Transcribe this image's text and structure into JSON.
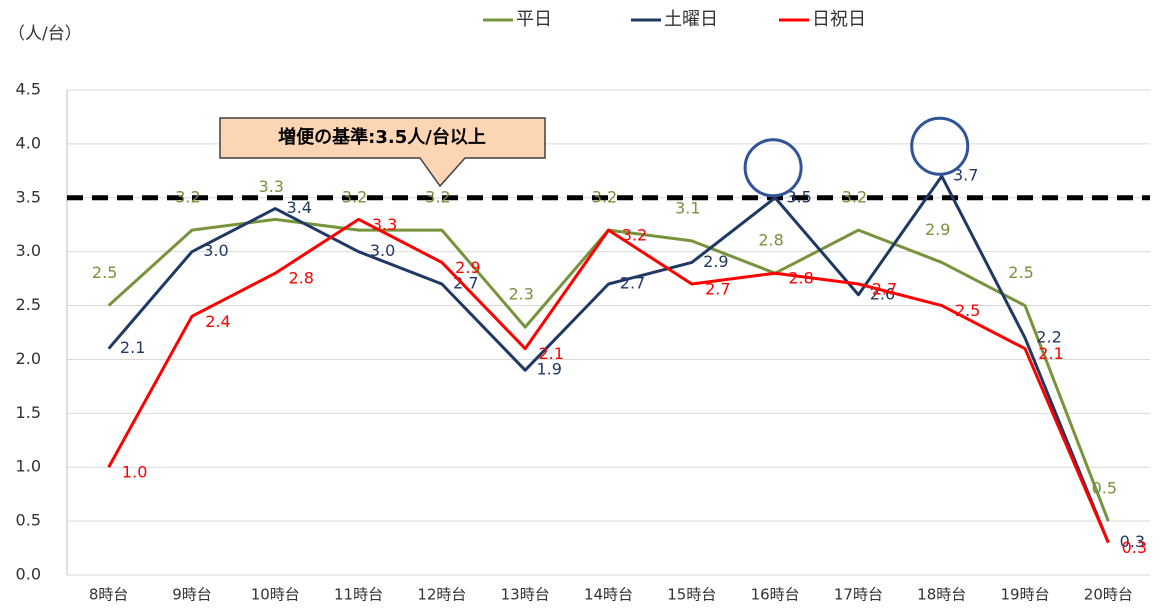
{
  "chart_data": {
    "type": "line",
    "y_axis_label": "（人/台）",
    "categories": [
      "8時台",
      "9時台",
      "10時台",
      "11時台",
      "12時台",
      "13時台",
      "14時台",
      "15時台",
      "16時台",
      "17時台",
      "18時台",
      "19時台",
      "20時台"
    ],
    "series": [
      {
        "name": "平日",
        "color": "#77933c",
        "values": [
          2.5,
          3.2,
          3.3,
          3.2,
          3.2,
          2.3,
          3.2,
          3.1,
          2.8,
          3.2,
          2.9,
          2.5,
          0.5
        ],
        "value_labels": [
          "2.5",
          "3.2",
          "3.3",
          "3.2",
          "3.2",
          "2.3",
          "3.2",
          "3.1",
          "2.8",
          "3.2",
          "2.9",
          "2.5",
          "0.5"
        ]
      },
      {
        "name": "土曜日",
        "color": "#1f3864",
        "values": [
          2.1,
          3.0,
          3.4,
          3.0,
          2.7,
          1.9,
          2.7,
          2.9,
          3.5,
          2.6,
          3.7,
          2.2,
          0.3
        ],
        "value_labels": [
          "2.1",
          "3.0",
          "3.4",
          "3.0",
          "2.7",
          "1.9",
          "2.7",
          "2.9",
          "3.5",
          "2.6",
          "3.7",
          "2.2",
          "0.3"
        ]
      },
      {
        "name": "日祝日",
        "color": "#ff0000",
        "values": [
          1.0,
          2.4,
          2.8,
          3.3,
          2.9,
          2.1,
          3.2,
          2.7,
          2.8,
          2.7,
          2.5,
          2.1,
          0.3
        ],
        "value_labels": [
          "1.0",
          "2.4",
          "2.8",
          "3.3",
          "2.9",
          "2.1",
          "3.2",
          "2.7",
          "2.8",
          "2.7",
          "2.5",
          "2.1",
          "0.3"
        ]
      }
    ],
    "ylim": [
      0,
      4.5
    ],
    "yticks": [
      {
        "value": 0,
        "label": "0.0"
      },
      0.5,
      {
        "value": 1,
        "label": "1.0"
      },
      1.5,
      {
        "value": 2,
        "label": "2.0"
      },
      2.5,
      {
        "value": 3,
        "label": "3.0"
      },
      3.5,
      {
        "value": 4,
        "label": "4.0"
      },
      4.5
    ],
    "grid": true,
    "threshold": {
      "value": 3.5,
      "label": "増便の基準:3.5人/台以上"
    },
    "legend": "top"
  }
}
